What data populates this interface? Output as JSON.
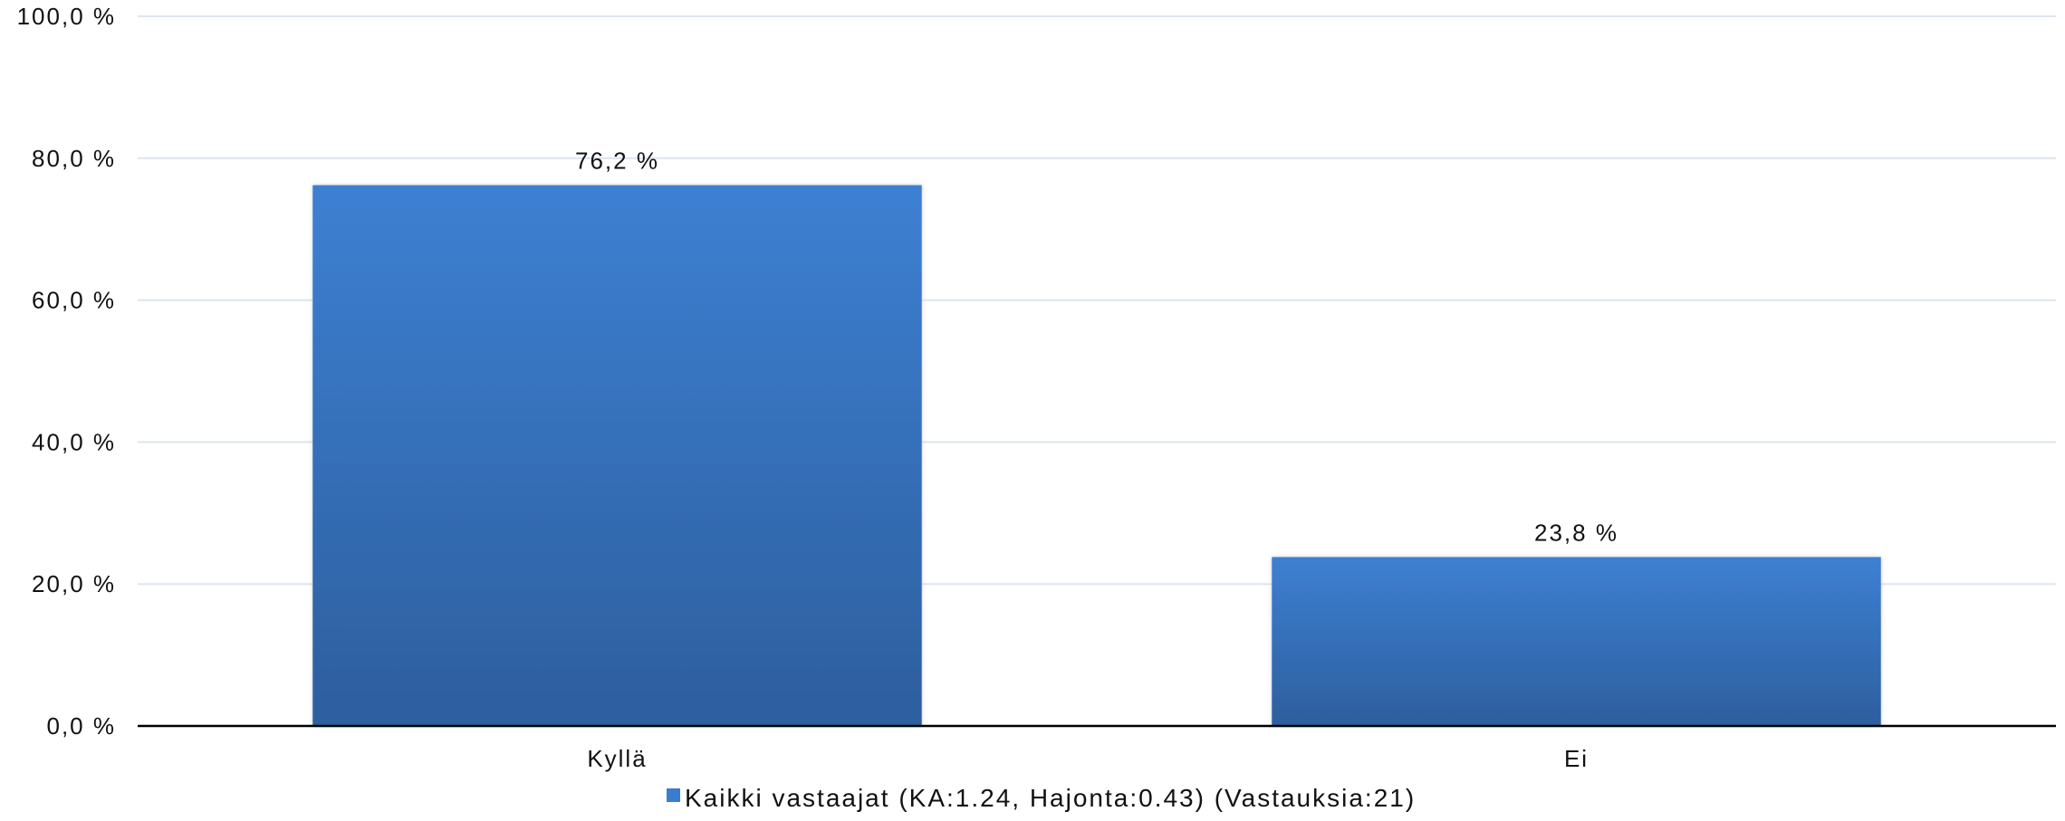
{
  "chart_data": {
    "type": "bar",
    "categories": [
      "Kyllä",
      "Ei"
    ],
    "series": [
      {
        "name": "Kaikki vastaajat (KA:1.24, Hajonta:0.43) (Vastauksia:21)",
        "values": [
          76.2,
          23.8
        ],
        "data_labels": [
          "76,2 %",
          "23,8 %"
        ],
        "color": "#3a7cd0"
      }
    ],
    "y_ticks": [
      0,
      20,
      40,
      60,
      80,
      100
    ],
    "y_tick_labels": [
      "0,0 %",
      "20,0 %",
      "40,0 %",
      "60,0 %",
      "80,0 %",
      "100,0 %"
    ],
    "ylim": [
      0,
      100
    ],
    "grid": true,
    "legend_position": "bottom",
    "colors": {
      "bar_top": "#3d80d2",
      "bar_bottom": "#2d5e9e",
      "grid": "#dde4ee",
      "axis": "#000000"
    }
  }
}
